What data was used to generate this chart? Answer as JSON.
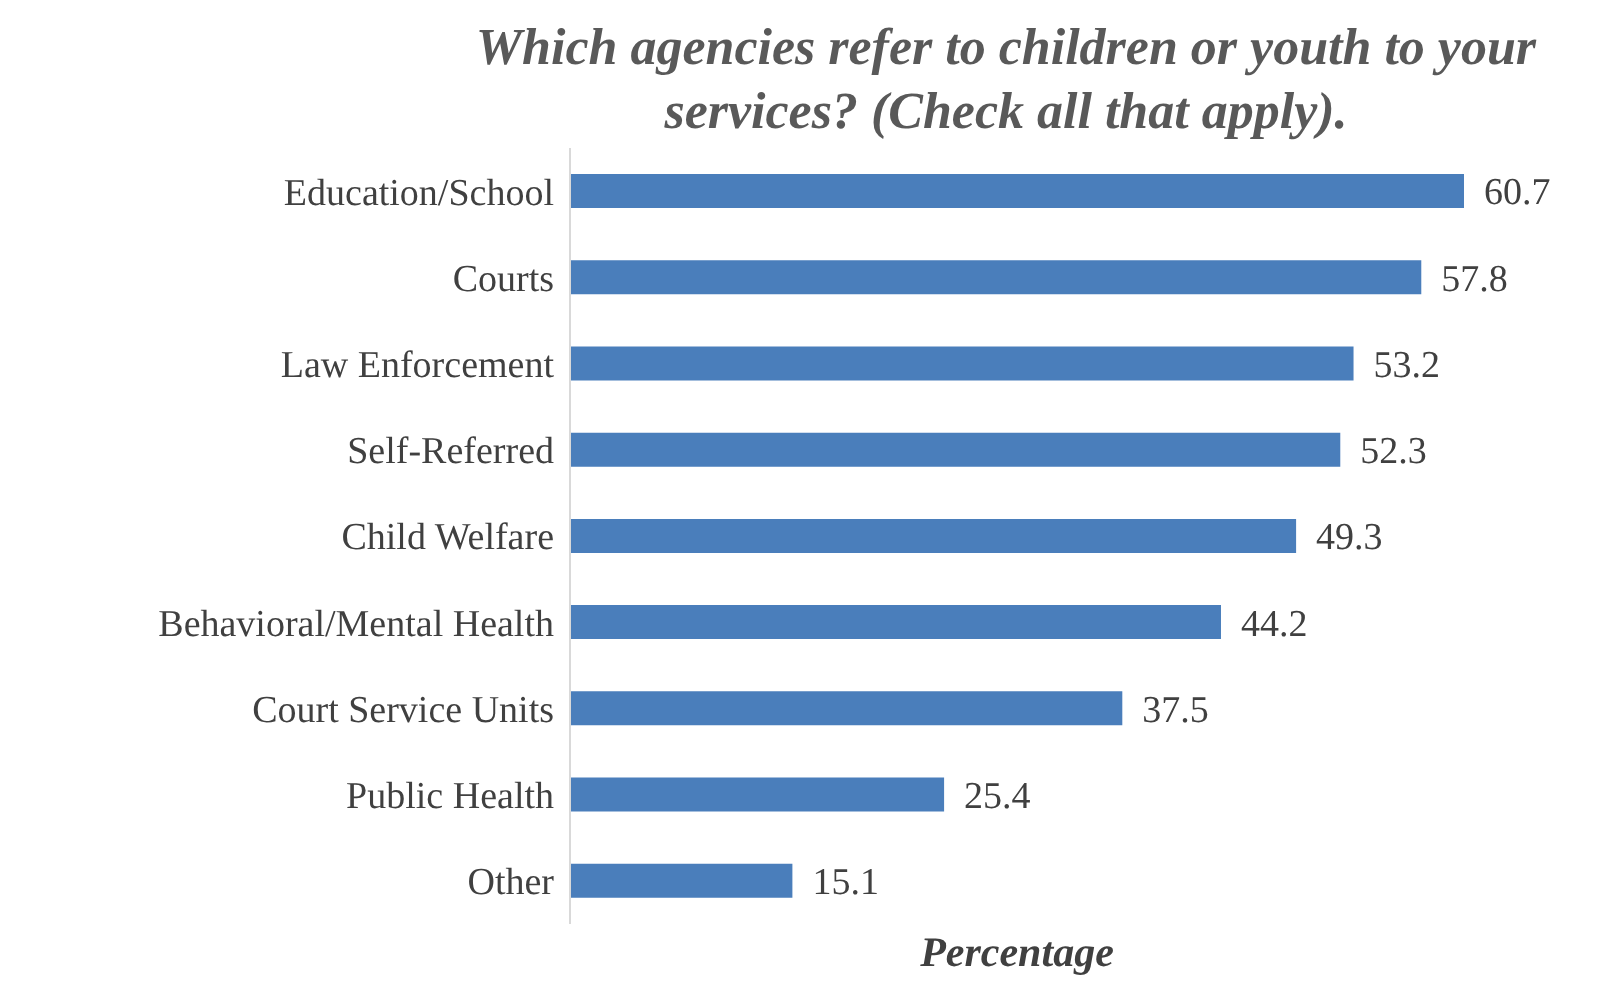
{
  "chart_data": {
    "type": "bar",
    "orientation": "horizontal",
    "title": "Which agencies refer to children or youth to your services? (Check all that apply).",
    "xlabel": "Percentage",
    "categories": [
      "Education/School",
      "Courts",
      "Law Enforcement",
      "Self-Referred",
      "Child Welfare",
      "Behavioral/Mental Health",
      "Court Service Units",
      "Public Health",
      "Other"
    ],
    "values": [
      60.7,
      57.8,
      53.2,
      52.3,
      49.3,
      44.2,
      37.5,
      25.4,
      15.1
    ],
    "color": "#4a7ebb",
    "data_labels": true
  }
}
